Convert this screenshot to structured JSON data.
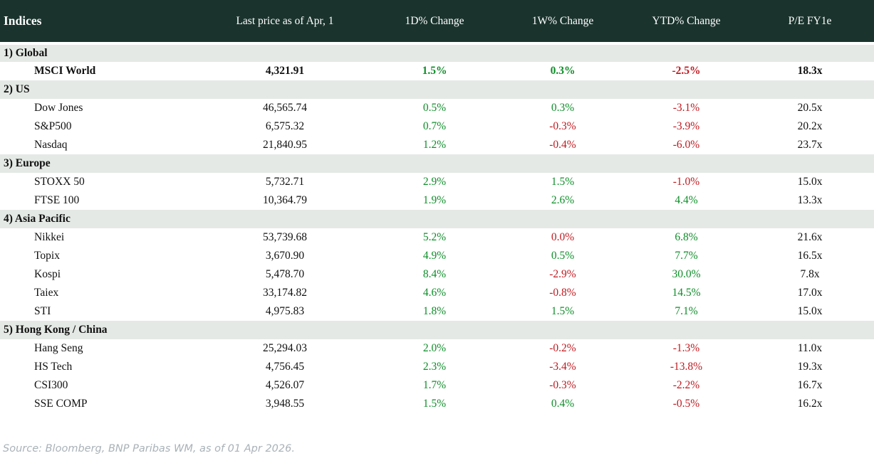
{
  "source_note": "Source: Bloomberg, BNP Paribas WM, as of 01 Apr 2026.",
  "colors": {
    "header_bg": "#1a332d",
    "section_bg": "#e4e9e5",
    "positive": "#0d8e28",
    "negative": "#bf1a20"
  },
  "chart_data": {
    "type": "table",
    "title": "Indices",
    "columns": [
      "Indices",
      "Last price as of Apr, 1",
      "1D% Change",
      "1W% Change",
      "YTD% Change",
      "P/E FY1e"
    ],
    "sections": [
      {
        "label": "1) Global",
        "rows": [
          {
            "name": "MSCI World",
            "price": "4,321.91",
            "d1": "1.5%",
            "d1_dir": "up",
            "w1": "0.3%",
            "w1_dir": "up",
            "ytd": "-2.5%",
            "ytd_dir": "down",
            "pe": "18.3x",
            "bold": true
          }
        ]
      },
      {
        "label": "2) US",
        "rows": [
          {
            "name": "Dow Jones",
            "price": "46,565.74",
            "d1": "0.5%",
            "d1_dir": "up",
            "w1": "0.3%",
            "w1_dir": "up",
            "ytd": "-3.1%",
            "ytd_dir": "down",
            "pe": "20.5x",
            "bold": false
          },
          {
            "name": "S&P500",
            "price": "6,575.32",
            "d1": "0.7%",
            "d1_dir": "up",
            "w1": "-0.3%",
            "w1_dir": "down",
            "ytd": "-3.9%",
            "ytd_dir": "down",
            "pe": "20.2x",
            "bold": false
          },
          {
            "name": "Nasdaq",
            "price": "21,840.95",
            "d1": "1.2%",
            "d1_dir": "up",
            "w1": "-0.4%",
            "w1_dir": "down",
            "ytd": "-6.0%",
            "ytd_dir": "down",
            "pe": "23.7x",
            "bold": false
          }
        ]
      },
      {
        "label": "3) Europe",
        "rows": [
          {
            "name": "STOXX 50",
            "price": "5,732.71",
            "d1": "2.9%",
            "d1_dir": "up",
            "w1": "1.5%",
            "w1_dir": "up",
            "ytd": "-1.0%",
            "ytd_dir": "down",
            "pe": "15.0x",
            "bold": false
          },
          {
            "name": "FTSE 100",
            "price": "10,364.79",
            "d1": "1.9%",
            "d1_dir": "up",
            "w1": "2.6%",
            "w1_dir": "up",
            "ytd": "4.4%",
            "ytd_dir": "up",
            "pe": "13.3x",
            "bold": false
          }
        ]
      },
      {
        "label": "4) Asia Pacific",
        "rows": [
          {
            "name": "Nikkei",
            "price": "53,739.68",
            "d1": "5.2%",
            "d1_dir": "up",
            "w1": "0.0%",
            "w1_dir": "down",
            "ytd": "6.8%",
            "ytd_dir": "up",
            "pe": "21.6x",
            "bold": false
          },
          {
            "name": "Topix",
            "price": "3,670.90",
            "d1": "4.9%",
            "d1_dir": "up",
            "w1": "0.5%",
            "w1_dir": "up",
            "ytd": "7.7%",
            "ytd_dir": "up",
            "pe": "16.5x",
            "bold": false
          },
          {
            "name": "Kospi",
            "price": "5,478.70",
            "d1": "8.4%",
            "d1_dir": "up",
            "w1": "-2.9%",
            "w1_dir": "down",
            "ytd": "30.0%",
            "ytd_dir": "up",
            "pe": "7.8x",
            "bold": false
          },
          {
            "name": "Taiex",
            "price": "33,174.82",
            "d1": "4.6%",
            "d1_dir": "up",
            "w1": "-0.8%",
            "w1_dir": "down",
            "ytd": "14.5%",
            "ytd_dir": "up",
            "pe": "17.0x",
            "bold": false
          },
          {
            "name": "STI",
            "price": "4,975.83",
            "d1": "1.8%",
            "d1_dir": "up",
            "w1": "1.5%",
            "w1_dir": "up",
            "ytd": "7.1%",
            "ytd_dir": "up",
            "pe": "15.0x",
            "bold": false
          }
        ]
      },
      {
        "label": "5) Hong Kong / China",
        "rows": [
          {
            "name": "Hang Seng",
            "price": "25,294.03",
            "d1": "2.0%",
            "d1_dir": "up",
            "w1": "-0.2%",
            "w1_dir": "down",
            "ytd": "-1.3%",
            "ytd_dir": "down",
            "pe": "11.0x",
            "bold": false
          },
          {
            "name": "HS Tech",
            "price": "4,756.45",
            "d1": "2.3%",
            "d1_dir": "up",
            "w1": "-3.4%",
            "w1_dir": "down",
            "ytd": "-13.8%",
            "ytd_dir": "down",
            "pe": "19.3x",
            "bold": false
          },
          {
            "name": "CSI300",
            "price": "4,526.07",
            "d1": "1.7%",
            "d1_dir": "up",
            "w1": "-0.3%",
            "w1_dir": "down",
            "ytd": "-2.2%",
            "ytd_dir": "down",
            "pe": "16.7x",
            "bold": false
          },
          {
            "name": "SSE COMP",
            "price": "3,948.55",
            "d1": "1.5%",
            "d1_dir": "up",
            "w1": "0.4%",
            "w1_dir": "up",
            "ytd": "-0.5%",
            "ytd_dir": "down",
            "pe": "16.2x",
            "bold": false
          }
        ]
      }
    ]
  }
}
